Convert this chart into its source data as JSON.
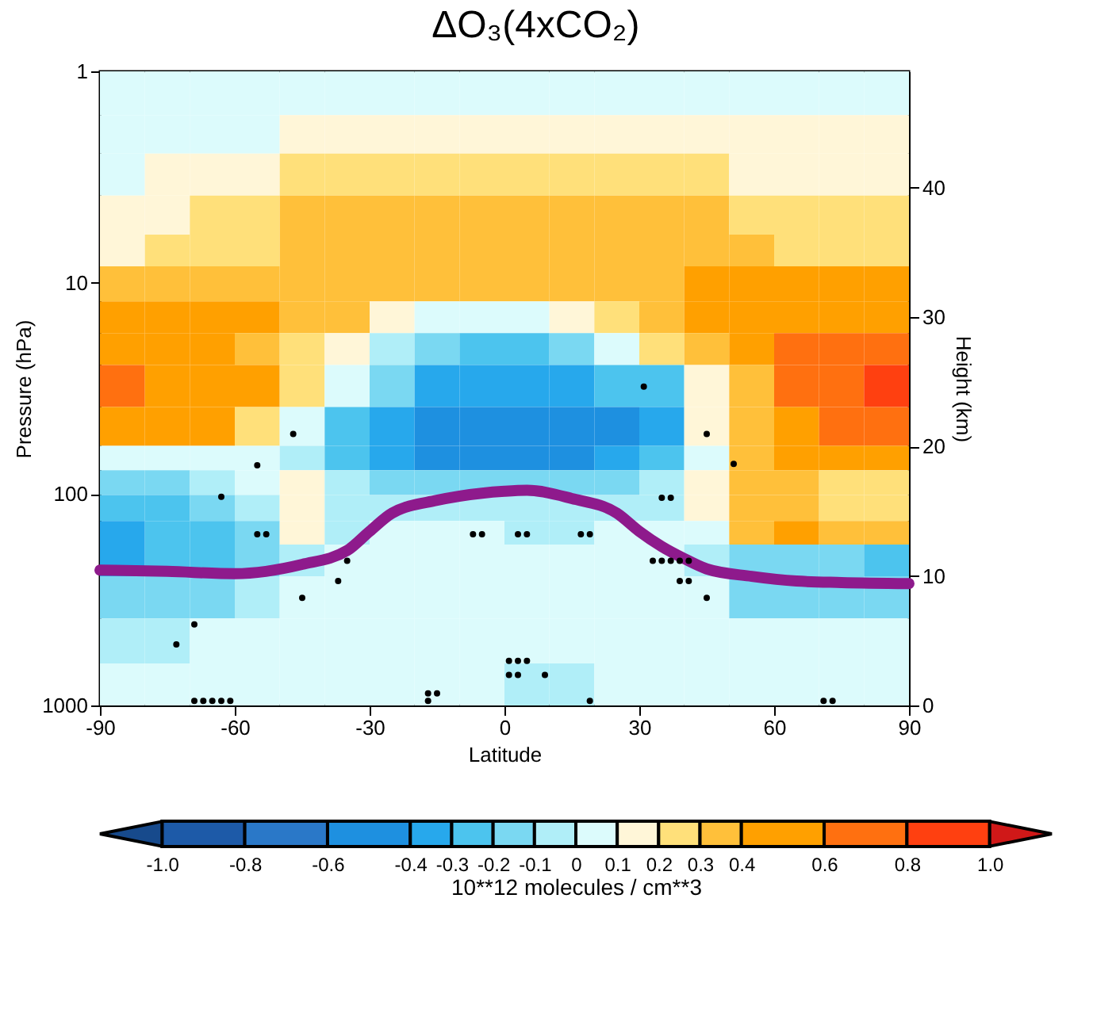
{
  "chart_data": {
    "type": "heatmap",
    "title": "ΔO₃(4xCO₂)",
    "xlabel": "Latitude",
    "ylabel": "Pressure (hPa)",
    "y2label": "Height (km)",
    "clabel": "10**12 molecules / cm**3",
    "x": [
      -85,
      -75,
      -65,
      -55,
      -45,
      -35,
      -25,
      -15,
      -5,
      5,
      15,
      25,
      35,
      45,
      55,
      65,
      75,
      85
    ],
    "y": [
      1.3,
      2,
      3,
      5,
      7,
      10,
      15,
      20,
      30,
      50,
      70,
      85,
      120,
      150,
      200,
      300,
      500,
      800
    ],
    "xlim": [
      -90,
      90
    ],
    "xticks": [
      -90,
      -60,
      -30,
      0,
      30,
      60,
      90
    ],
    "ylim": [
      1000,
      1
    ],
    "yticks": [
      1,
      10,
      100,
      1000
    ],
    "log": "y",
    "y2lim": [
      0,
      49
    ],
    "y2ticks": [
      0,
      10,
      20,
      30,
      40
    ],
    "cticks": [
      {
        "value": -1,
        "label": "-1.0"
      },
      -0.8,
      -0.6,
      -0.4,
      -0.3,
      -0.2,
      -0.1,
      0,
      0.1,
      0.2,
      0.3,
      0.4,
      0.6,
      0.8,
      {
        "value": 1,
        "label": "1.0"
      }
    ],
    "colors": [
      "#174a8c",
      "#1d5aa8",
      "#2a78c8",
      "#1e90e0",
      "#27a8ec",
      "#4cc4ee",
      "#7ad8f2",
      "#b0eef8",
      "#dcfbfc",
      "#fff6d8",
      "#ffe07a",
      "#ffc03a",
      "#ffa000",
      "#ff7010",
      "#ff4010",
      "#d01818"
    ],
    "cells": [
      [
        0.05,
        0.05,
        0.05,
        0.05,
        0.05,
        0.05,
        0.05,
        0.05,
        0.05,
        0.05,
        0.05,
        0.05,
        0.05,
        0.05,
        0.05,
        0.05,
        0.05,
        0.05
      ],
      [
        0.05,
        0.05,
        0.05,
        0.05,
        0.15,
        0.15,
        0.15,
        0.15,
        0.15,
        0.15,
        0.15,
        0.15,
        0.15,
        0.15,
        0.15,
        0.15,
        0.15,
        0.15
      ],
      [
        0.05,
        0.15,
        0.15,
        0.15,
        0.25,
        0.25,
        0.25,
        0.25,
        0.25,
        0.25,
        0.25,
        0.25,
        0.25,
        0.25,
        0.15,
        0.15,
        0.15,
        0.15
      ],
      [
        0.15,
        0.15,
        0.25,
        0.25,
        0.35,
        0.35,
        0.35,
        0.35,
        0.35,
        0.35,
        0.35,
        0.35,
        0.35,
        0.35,
        0.25,
        0.25,
        0.25,
        0.25
      ],
      [
        0.15,
        0.25,
        0.25,
        0.25,
        0.35,
        0.35,
        0.35,
        0.35,
        0.35,
        0.35,
        0.35,
        0.35,
        0.35,
        0.35,
        0.35,
        0.25,
        0.25,
        0.25
      ],
      [
        0.35,
        0.35,
        0.35,
        0.35,
        0.35,
        0.35,
        0.35,
        0.35,
        0.35,
        0.35,
        0.35,
        0.35,
        0.35,
        0.5,
        0.5,
        0.5,
        0.5,
        0.5
      ],
      [
        0.5,
        0.5,
        0.5,
        0.5,
        0.35,
        0.35,
        0.15,
        0.05,
        0.05,
        0.05,
        0.15,
        0.25,
        0.35,
        0.5,
        0.5,
        0.5,
        0.5,
        0.5
      ],
      [
        0.5,
        0.5,
        0.5,
        0.35,
        0.25,
        0.15,
        -0.05,
        -0.15,
        -0.25,
        -0.25,
        -0.15,
        0.05,
        0.25,
        0.35,
        0.5,
        0.7,
        0.7,
        0.7
      ],
      [
        0.7,
        0.5,
        0.5,
        0.5,
        0.25,
        0.05,
        -0.15,
        -0.35,
        -0.35,
        -0.35,
        -0.35,
        -0.25,
        -0.25,
        0.15,
        0.35,
        0.7,
        0.7,
        0.9
      ],
      [
        0.5,
        0.5,
        0.5,
        0.25,
        0.05,
        -0.25,
        -0.35,
        -0.5,
        -0.5,
        -0.5,
        -0.5,
        -0.5,
        -0.35,
        0.15,
        0.35,
        0.5,
        0.7,
        0.7
      ],
      [
        0.05,
        0.05,
        0.05,
        0.05,
        -0.05,
        -0.25,
        -0.35,
        -0.5,
        -0.5,
        -0.5,
        -0.5,
        -0.35,
        -0.25,
        0.05,
        0.35,
        0.5,
        0.5,
        0.5
      ],
      [
        -0.15,
        -0.15,
        -0.05,
        0.05,
        0.15,
        -0.05,
        -0.15,
        -0.15,
        -0.15,
        -0.15,
        -0.15,
        -0.15,
        -0.05,
        0.15,
        0.35,
        0.35,
        0.25,
        0.25
      ],
      [
        -0.25,
        -0.25,
        -0.15,
        -0.05,
        0.15,
        -0.05,
        -0.05,
        -0.05,
        -0.05,
        -0.05,
        -0.05,
        -0.05,
        -0.05,
        0.15,
        0.35,
        0.35,
        0.25,
        0.25
      ],
      [
        -0.35,
        -0.25,
        -0.25,
        -0.15,
        0.15,
        -0.05,
        0.05,
        0.05,
        0.05,
        -0.05,
        -0.05,
        0.05,
        0.05,
        0.05,
        0.35,
        0.5,
        0.35,
        0.35
      ],
      [
        -0.35,
        -0.25,
        -0.25,
        -0.15,
        -0.05,
        0.05,
        0.05,
        0.05,
        0.05,
        0.05,
        0.05,
        0.05,
        0.05,
        -0.05,
        -0.15,
        -0.15,
        -0.15,
        -0.25
      ],
      [
        -0.15,
        -0.15,
        -0.15,
        -0.05,
        0.05,
        0.05,
        0.05,
        0.05,
        0.05,
        0.05,
        0.05,
        0.05,
        0.05,
        0.05,
        -0.15,
        -0.15,
        -0.15,
        -0.15
      ],
      [
        -0.05,
        -0.05,
        0.05,
        0.05,
        0.05,
        0.05,
        0.05,
        0.05,
        0.05,
        0.05,
        0.05,
        0.05,
        0.05,
        0.05,
        0.05,
        0.05,
        0.05,
        0.05
      ],
      [
        0.05,
        0.05,
        0.05,
        0.05,
        0.05,
        0.05,
        0.05,
        0.05,
        0.05,
        -0.05,
        -0.05,
        0.05,
        0.05,
        0.05,
        0.05,
        0.05,
        0.05,
        0.05
      ]
    ],
    "series": [
      {
        "type": "line",
        "color": "#8e1a8c",
        "line_style": "solid",
        "x": [
          -90,
          -75,
          -60,
          -45,
          -35,
          -30,
          -25,
          -15,
          -5,
          0,
          5,
          15,
          25,
          30,
          35,
          40,
          45,
          55,
          65,
          75,
          90
        ],
        "values": [
          229,
          232,
          238,
          215,
          185,
          150,
          123,
          107,
          99,
          97,
          96,
          105,
          123,
          150,
          177,
          202,
          226,
          245,
          258,
          262,
          265
        ]
      },
      {
        "type": "scatter",
        "color": "#000000",
        "marker": "circle",
        "x": [
          -47,
          -55,
          -63,
          -55,
          -53,
          -35,
          -37,
          -45,
          -69,
          -73,
          -69,
          -67,
          -65,
          -63,
          -61,
          -17,
          -15,
          -17,
          -7,
          -5,
          31,
          45,
          51,
          35,
          37,
          3,
          5,
          17,
          19,
          33,
          35,
          37,
          39,
          41,
          39,
          41,
          45,
          1,
          3,
          5,
          1,
          3,
          9,
          19,
          71,
          73
        ],
        "values": [
          52,
          73,
          103,
          155,
          155,
          207,
          258,
          310,
          414,
          514,
          952,
          952,
          952,
          952,
          952,
          877,
          877,
          952,
          155,
          155,
          31,
          52,
          72,
          104,
          104,
          155,
          155,
          155,
          155,
          207,
          207,
          207,
          207,
          207,
          258,
          258,
          310,
          615,
          615,
          615,
          717,
          717,
          717,
          952,
          952,
          952
        ]
      }
    ]
  }
}
